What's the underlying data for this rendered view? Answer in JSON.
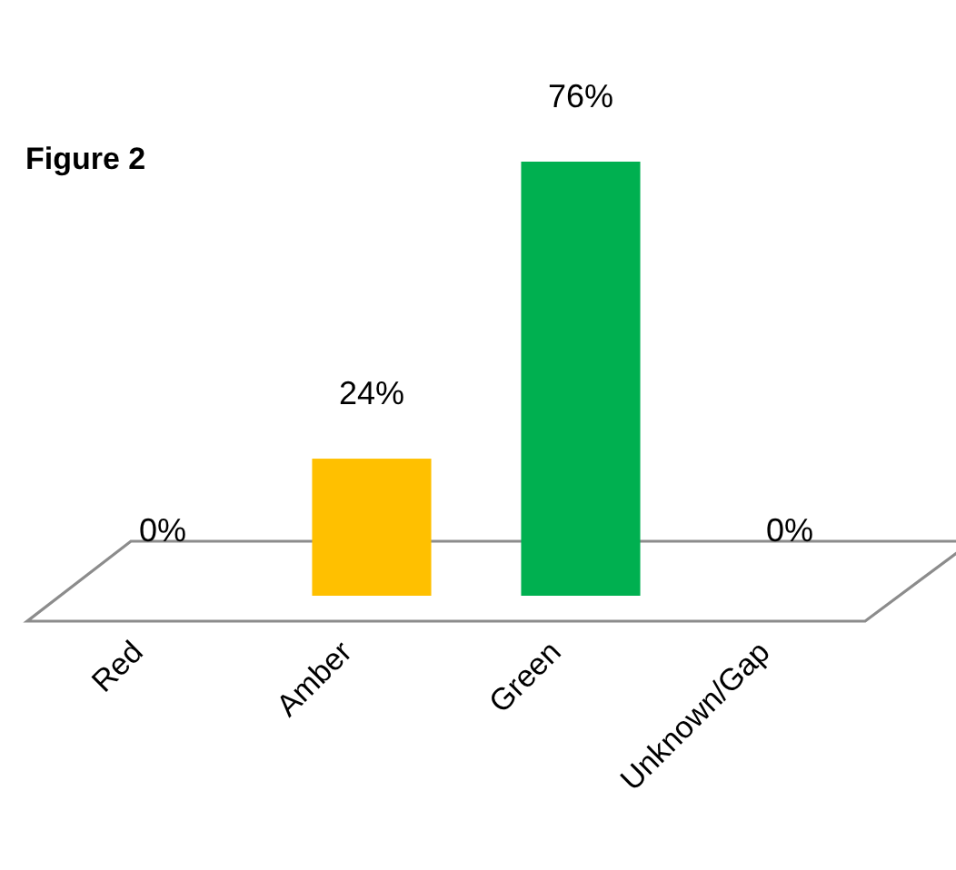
{
  "chart_data": {
    "type": "bar",
    "title": "Figure 2",
    "categories": [
      "Red",
      "Amber",
      "Green",
      "Unknown/Gap"
    ],
    "values": [
      0,
      24,
      76,
      0
    ],
    "colors": [
      "#c00000",
      "#ffc000",
      "#00b050",
      "#552378"
    ],
    "value_labels": [
      "0%",
      "24%",
      "76%",
      "0%"
    ]
  }
}
